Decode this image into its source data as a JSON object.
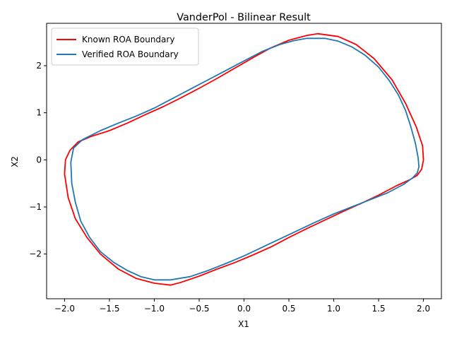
{
  "chart_data": {
    "type": "line",
    "title": "VanderPol - Bilinear Result",
    "xlabel": "X1",
    "ylabel": "X2",
    "xlim": [
      -2.2,
      2.2
    ],
    "ylim": [
      -2.95,
      2.9
    ],
    "xticks": [
      -2.0,
      -1.5,
      -1.0,
      -0.5,
      0.0,
      0.5,
      1.0,
      1.5,
      2.0
    ],
    "xtick_labels": [
      "−2.0",
      "−1.5",
      "−1.0",
      "−0.5",
      "0.0",
      "0.5",
      "1.0",
      "1.5",
      "2.0"
    ],
    "yticks": [
      -2,
      -1,
      0,
      1,
      2
    ],
    "ytick_labels": [
      "−2",
      "−1",
      "0",
      "1",
      "2"
    ],
    "grid": false,
    "legend_position": "top-left",
    "series": [
      {
        "name": "Known ROA Boundary",
        "color": "#ff0000",
        "x": [
          0.82,
          1.05,
          1.25,
          1.45,
          1.65,
          1.8,
          1.92,
          1.99,
          2.0,
          1.98,
          1.93,
          1.85,
          1.7,
          1.5,
          1.3,
          1.1,
          0.9,
          0.7,
          0.5,
          0.3,
          0.1,
          -0.1,
          -0.3,
          -0.5,
          -0.7,
          -0.82,
          -1.0,
          -1.2,
          -1.4,
          -1.6,
          -1.75,
          -1.88,
          -1.96,
          -2.0,
          -1.99,
          -1.94,
          -1.85,
          -1.7,
          -1.5,
          -1.3,
          -1.1,
          -0.9,
          -0.7,
          -0.5,
          -0.3,
          -0.1,
          0.1,
          0.3,
          0.5,
          0.7,
          0.82
        ],
        "y": [
          2.68,
          2.62,
          2.45,
          2.15,
          1.7,
          1.2,
          0.7,
          0.3,
          0.0,
          -0.2,
          -0.33,
          -0.42,
          -0.55,
          -0.75,
          -0.93,
          -1.1,
          -1.28,
          -1.46,
          -1.65,
          -1.85,
          -2.02,
          -2.18,
          -2.32,
          -2.47,
          -2.6,
          -2.66,
          -2.62,
          -2.52,
          -2.32,
          -2.0,
          -1.65,
          -1.25,
          -0.8,
          -0.3,
          0.0,
          0.2,
          0.38,
          0.5,
          0.62,
          0.78,
          0.96,
          1.13,
          1.32,
          1.52,
          1.73,
          1.95,
          2.17,
          2.38,
          2.54,
          2.64,
          2.68
        ]
      },
      {
        "name": "Verified ROA Boundary",
        "color": "#1f77b4",
        "x": [
          0.7,
          0.9,
          1.05,
          1.2,
          1.35,
          1.5,
          1.62,
          1.72,
          1.8,
          1.86,
          1.91,
          1.94,
          1.95,
          1.93,
          1.88,
          1.78,
          1.6,
          1.4,
          1.2,
          1.0,
          0.8,
          0.6,
          0.4,
          0.2,
          0.0,
          -0.2,
          -0.4,
          -0.6,
          -0.82,
          -1.0,
          -1.15,
          -1.3,
          -1.45,
          -1.6,
          -1.72,
          -1.82,
          -1.88,
          -1.92,
          -1.93,
          -1.9,
          -1.8,
          -1.6,
          -1.4,
          -1.2,
          -1.0,
          -0.8,
          -0.6,
          -0.4,
          -0.2,
          0.0,
          0.2,
          0.4,
          0.55,
          0.7
        ],
        "y": [
          2.58,
          2.58,
          2.52,
          2.4,
          2.22,
          1.97,
          1.68,
          1.38,
          1.05,
          0.7,
          0.35,
          0.05,
          -0.15,
          -0.28,
          -0.38,
          -0.52,
          -0.7,
          -0.85,
          -1.0,
          -1.15,
          -1.32,
          -1.5,
          -1.68,
          -1.86,
          -2.04,
          -2.2,
          -2.35,
          -2.48,
          -2.55,
          -2.55,
          -2.48,
          -2.35,
          -2.18,
          -1.95,
          -1.65,
          -1.3,
          -0.9,
          -0.5,
          -0.05,
          0.25,
          0.43,
          0.62,
          0.78,
          0.93,
          1.1,
          1.3,
          1.5,
          1.7,
          1.9,
          2.1,
          2.3,
          2.45,
          2.53,
          2.58
        ]
      }
    ]
  }
}
